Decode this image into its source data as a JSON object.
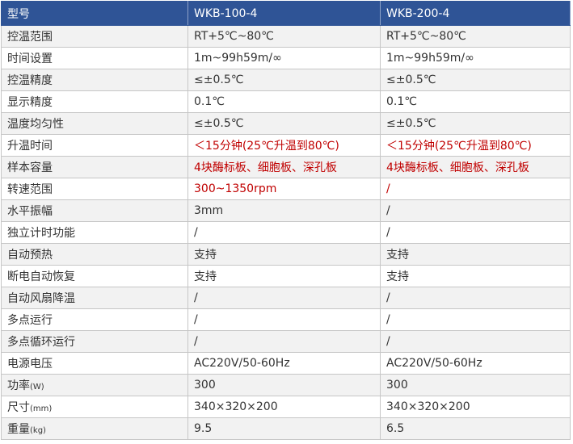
{
  "header": {
    "label": "型号",
    "models": [
      "WKB-100-4",
      "WKB-200-4"
    ]
  },
  "accent_color": "#2f5496",
  "highlight_color": "#c00000",
  "rows": [
    {
      "label": "控温范围",
      "unit": "",
      "values": [
        "RT+5℃~80℃",
        "RT+5℃~80℃"
      ],
      "highlight": false
    },
    {
      "label": "时间设置",
      "unit": "",
      "values": [
        "1m~99h59m/∞",
        "1m~99h59m/∞"
      ],
      "highlight": false
    },
    {
      "label": "控温精度",
      "unit": "",
      "values": [
        "≤±0.5℃",
        "≤±0.5℃"
      ],
      "highlight": false
    },
    {
      "label": "显示精度",
      "unit": "",
      "values": [
        "0.1℃",
        "0.1℃"
      ],
      "highlight": false
    },
    {
      "label": "温度均匀性",
      "unit": "",
      "values": [
        "≤±0.5℃",
        "≤±0.5℃"
      ],
      "highlight": false
    },
    {
      "label": "升温时间",
      "unit": "",
      "values": [
        "＜15分钟(25℃升温到80℃)",
        "＜15分钟(25℃升温到80℃)"
      ],
      "highlight": true
    },
    {
      "label": "样本容量",
      "unit": "",
      "values": [
        "4块酶标板、细胞板、深孔板",
        "4块酶标板、细胞板、深孔板"
      ],
      "highlight": true
    },
    {
      "label": "转速范围",
      "unit": "",
      "values": [
        "300~1350rpm",
        "/"
      ],
      "highlight": true
    },
    {
      "label": "水平振幅",
      "unit": "",
      "values": [
        "3mm",
        "/"
      ],
      "highlight": false
    },
    {
      "label": "独立计时功能",
      "unit": "",
      "values": [
        "/",
        "/"
      ],
      "highlight": false
    },
    {
      "label": "自动预热",
      "unit": "",
      "values": [
        "支持",
        "支持"
      ],
      "highlight": false
    },
    {
      "label": "断电自动恢复",
      "unit": "",
      "values": [
        "支持",
        "支持"
      ],
      "highlight": false
    },
    {
      "label": "自动风扇降温",
      "unit": "",
      "values": [
        "/",
        "/"
      ],
      "highlight": false
    },
    {
      "label": "多点运行",
      "unit": "",
      "values": [
        "/",
        "/"
      ],
      "highlight": false
    },
    {
      "label": "多点循环运行",
      "unit": "",
      "values": [
        "/",
        "/"
      ],
      "highlight": false
    },
    {
      "label": "电源电压",
      "unit": "",
      "values": [
        "AC220V/50-60Hz",
        "AC220V/50-60Hz"
      ],
      "highlight": false
    },
    {
      "label": "功率",
      "unit": "(W)",
      "values": [
        "300",
        "300"
      ],
      "highlight": false
    },
    {
      "label": "尺寸",
      "unit": "(mm)",
      "values": [
        "340×320×200",
        "340×320×200"
      ],
      "highlight": false
    },
    {
      "label": "重量",
      "unit": "(kg)",
      "values": [
        "9.5",
        "6.5"
      ],
      "highlight": false
    }
  ]
}
